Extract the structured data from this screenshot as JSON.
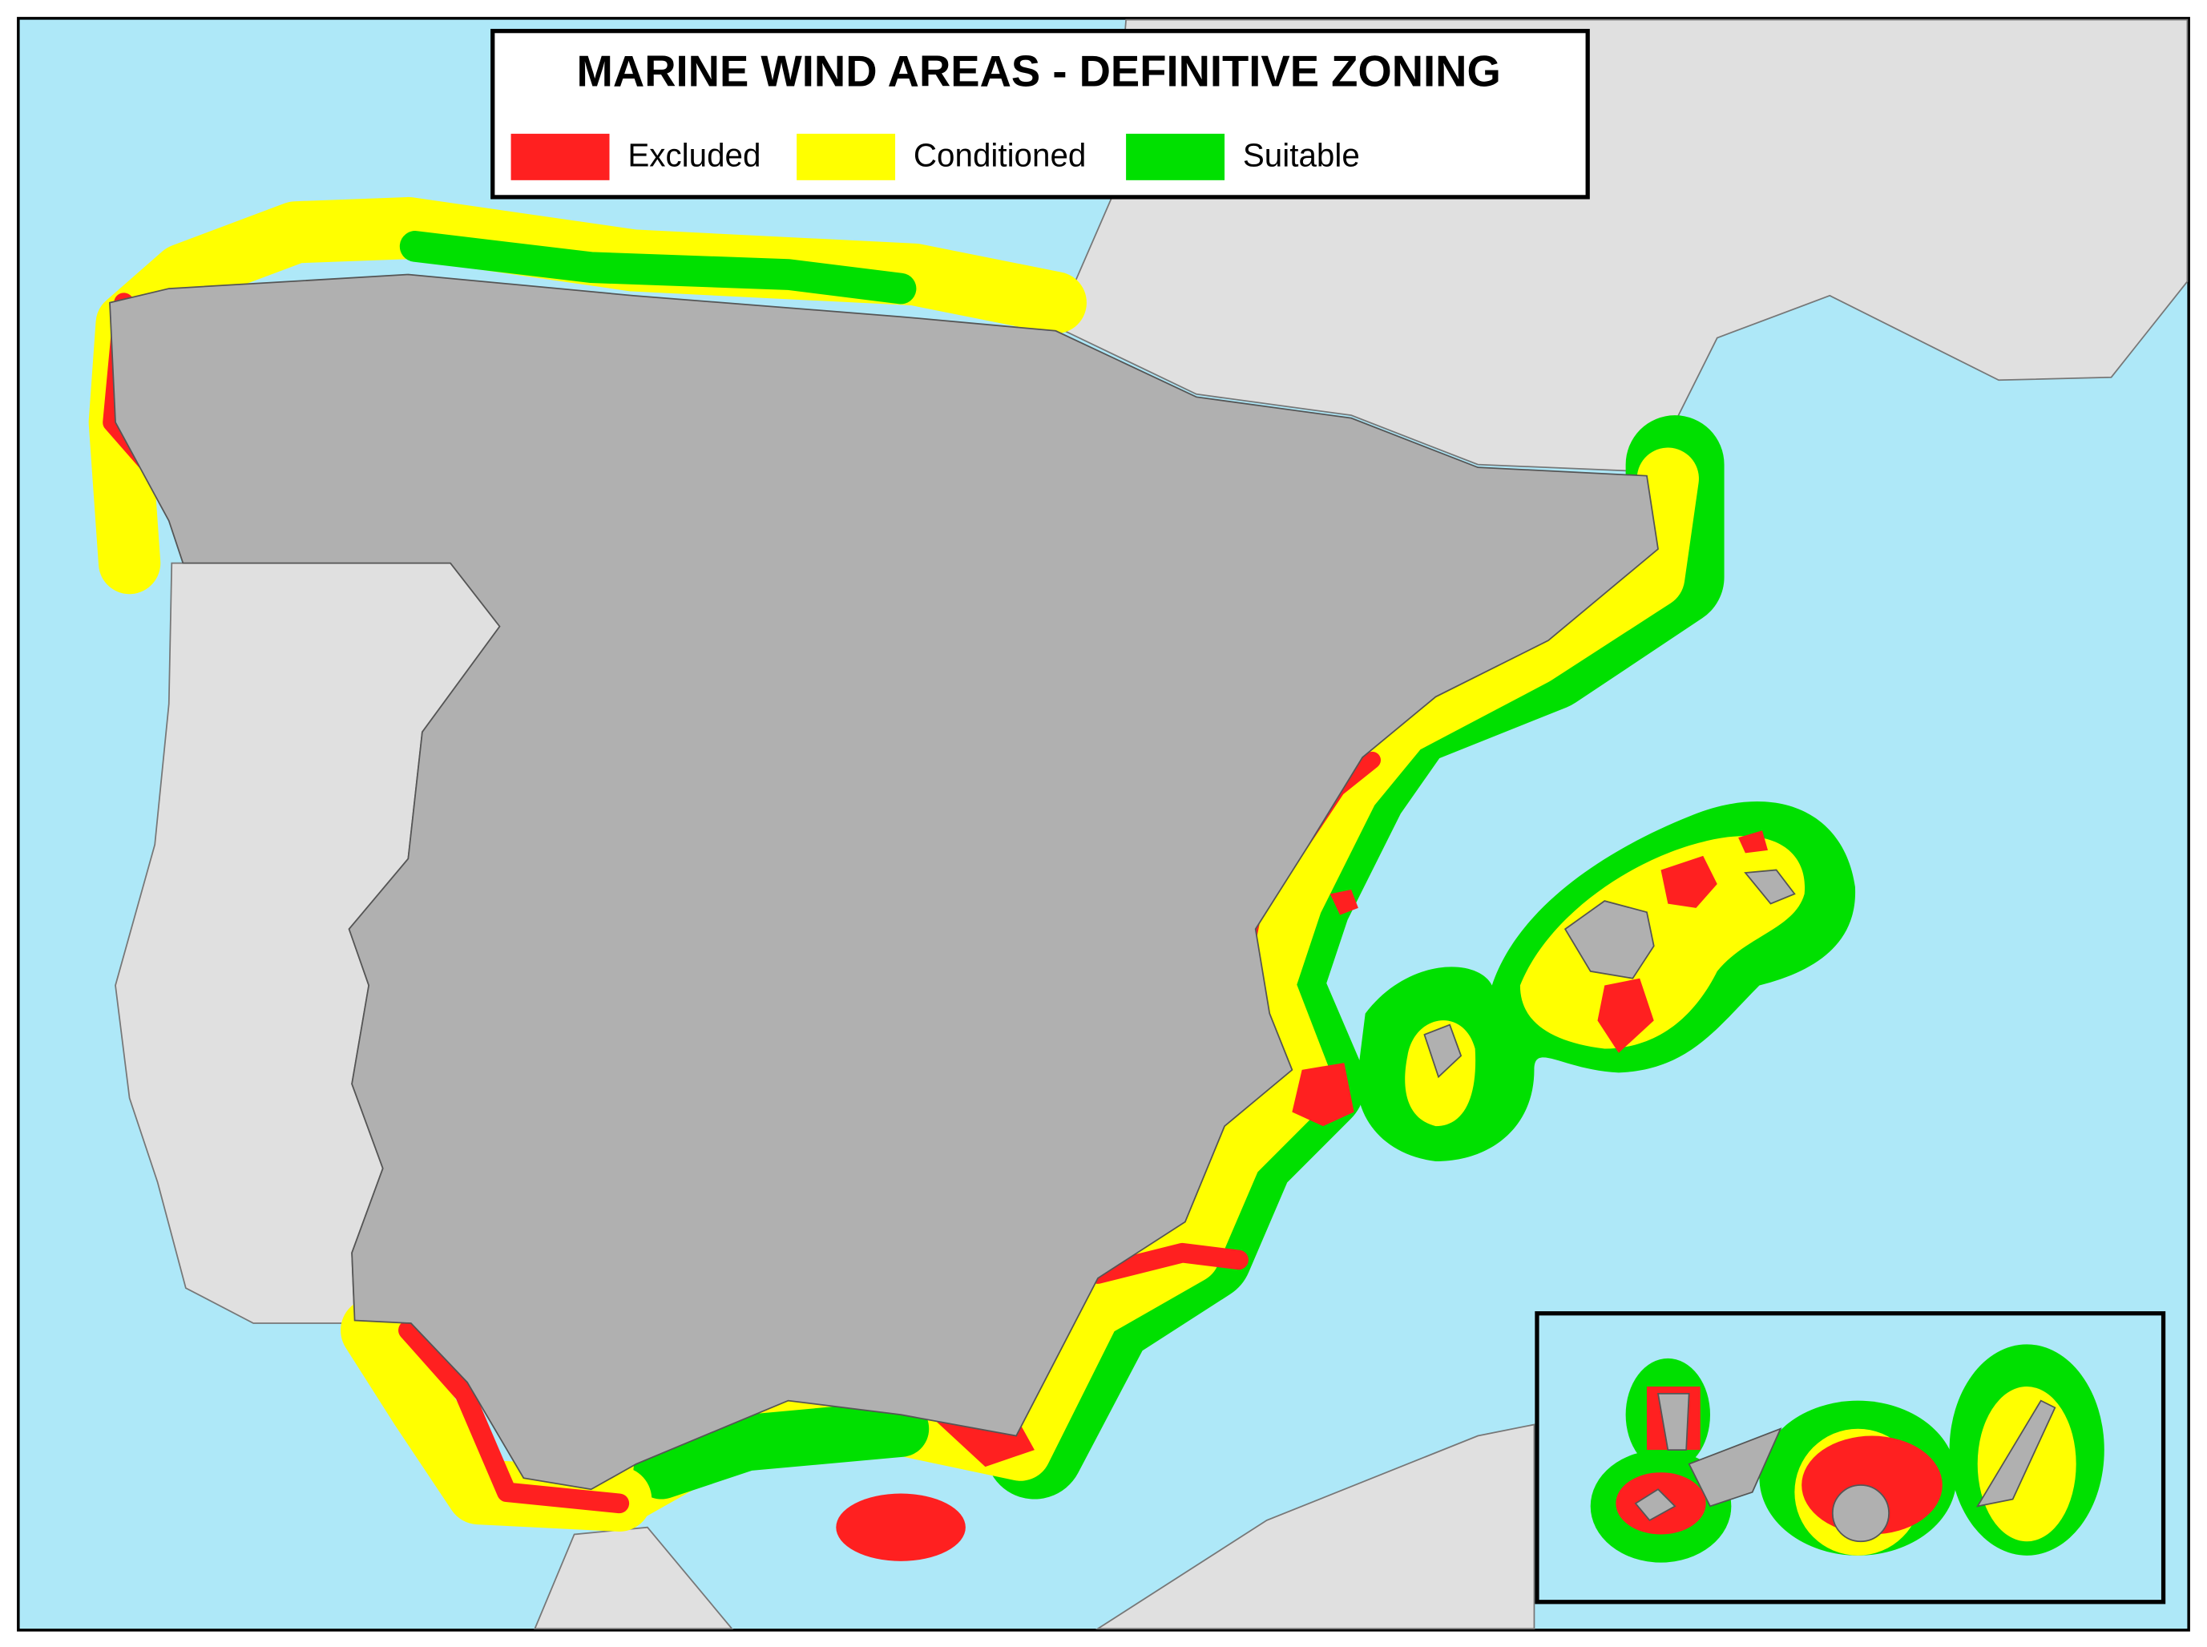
{
  "title": "MARINE WIND AREAS - DEFINITIVE ZONING",
  "legend": [
    {
      "label": "Excluded",
      "color": "#ff2020"
    },
    {
      "label": "Conditioned",
      "color": "#ffff00"
    },
    {
      "label": "Suitable",
      "color": "#00e000"
    }
  ]
}
